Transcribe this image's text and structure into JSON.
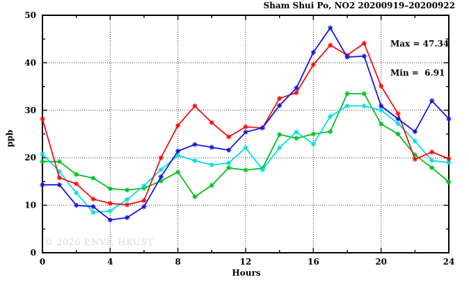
{
  "chart_data": {
    "type": "line",
    "title": "Sham Shui Po, NO2 20200919–20200922",
    "annotation": {
      "max_label": "Max = 47.34",
      "min_label": "Min =  6.91"
    },
    "max_value": 47.34,
    "min_value": 6.91,
    "xlabel": "Hours",
    "ylabel": "ppb",
    "xlim": [
      0,
      24
    ],
    "ylim": [
      0,
      50
    ],
    "xticks": [
      0,
      4,
      8,
      12,
      16,
      20,
      24
    ],
    "xticks_minor": [
      2,
      6,
      10,
      14,
      18,
      22
    ],
    "yticks": [
      0,
      10,
      20,
      30,
      40,
      50
    ],
    "yticks_minor": [
      5,
      15,
      25,
      35,
      45
    ],
    "grid": "dotted-at-major-ticks",
    "legend": "none",
    "marker": "asterisk",
    "x": [
      0,
      1,
      2,
      3,
      4,
      5,
      6,
      7,
      8,
      9,
      10,
      11,
      12,
      13,
      14,
      15,
      16,
      17,
      18,
      19,
      20,
      21,
      22,
      23,
      24
    ],
    "series": [
      {
        "name": "series-green",
        "color": "#00c020",
        "values": [
          19.2,
          19.2,
          16.5,
          15.7,
          13.5,
          13.2,
          13.6,
          15.1,
          17.0,
          11.8,
          14.2,
          17.9,
          17.4,
          17.8,
          24.9,
          24.1,
          25.0,
          25.5,
          33.5,
          33.5,
          27.1,
          25.0,
          20.6,
          17.9,
          14.9
        ]
      },
      {
        "name": "series-cyan",
        "color": "#00dde0",
        "values": [
          20.8,
          17.1,
          12.6,
          8.5,
          8.8,
          11.2,
          14.1,
          17.5,
          20.5,
          19.4,
          18.5,
          18.9,
          22.1,
          17.5,
          22.1,
          25.4,
          22.9,
          28.7,
          30.9,
          30.9,
          30.0,
          27.2,
          23.5,
          19.4,
          19.0
        ]
      },
      {
        "name": "series-red",
        "color": "#ee1010",
        "values": [
          28.2,
          15.8,
          14.5,
          11.3,
          10.4,
          10.1,
          11.0,
          20.0,
          26.8,
          30.9,
          27.4,
          24.4,
          26.5,
          26.3,
          32.5,
          33.7,
          39.6,
          43.7,
          41.6,
          44.1,
          35.1,
          29.3,
          19.7,
          21.2,
          19.8
        ]
      },
      {
        "name": "series-blue",
        "color": "#1515dd",
        "values": [
          14.3,
          14.3,
          10.0,
          9.7,
          6.91,
          7.4,
          9.7,
          16.0,
          21.4,
          22.8,
          22.2,
          21.6,
          25.4,
          26.3,
          31.0,
          34.7,
          42.2,
          47.34,
          41.2,
          41.4,
          30.9,
          28.2,
          25.5,
          32.0,
          28.2
        ]
      }
    ],
    "watermark": "© 2026 ENVF, HKUST"
  }
}
